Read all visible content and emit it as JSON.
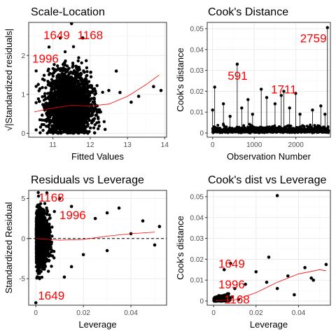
{
  "colors": {
    "points": "#000000",
    "smooth": "#ff0000",
    "annotation": "#ff0000",
    "grid": "#ebebeb"
  },
  "chart_data": [
    {
      "id": "scale-location",
      "type": "scatter",
      "title": "Scale-Location",
      "xlabel": "Fitted Values",
      "ylabel": "√|Standardized residuals|",
      "xlim": [
        10.35,
        14.05
      ],
      "ylim": [
        -0.1,
        2.85
      ],
      "xticks": [
        11,
        12,
        13,
        14
      ],
      "yticks": [
        0,
        1,
        2
      ],
      "cloud": {
        "x_center": 11.45,
        "x_spread": 0.28,
        "y_center": 0.72,
        "y_spread": 0.42,
        "n": 2800
      },
      "points": [
        [
          11.5,
          2.82
        ],
        [
          11.2,
          2.45
        ],
        [
          11.8,
          2.45
        ],
        [
          11.3,
          1.8
        ],
        [
          12.5,
          1.1
        ],
        [
          12.8,
          1.05
        ],
        [
          13.1,
          0.8
        ],
        [
          13.3,
          0.95
        ],
        [
          13.7,
          1.2
        ],
        [
          13.9,
          1.1
        ],
        [
          12.7,
          1.6
        ],
        [
          12.4,
          0.1
        ]
      ],
      "smooth": [
        [
          10.5,
          0.55
        ],
        [
          11.0,
          0.65
        ],
        [
          11.5,
          0.72
        ],
        [
          12.0,
          0.7
        ],
        [
          12.5,
          0.75
        ],
        [
          13.0,
          0.95
        ],
        [
          13.5,
          1.25
        ],
        [
          13.85,
          1.5
        ]
      ],
      "annotations": [
        {
          "label": "1649",
          "x": 11.1,
          "y": 2.5
        },
        {
          "label": "1168",
          "x": 12.0,
          "y": 2.5
        },
        {
          "label": "1996",
          "x": 10.8,
          "y": 1.9
        }
      ]
    },
    {
      "id": "cooks-distance",
      "type": "bar",
      "title": "Cook's Distance",
      "xlabel": "Observation Number",
      "ylabel": "Cook's distance",
      "xlim": [
        -130,
        2830
      ],
      "ylim": [
        -0.002,
        0.053
      ],
      "xticks": [
        0,
        1000,
        2000
      ],
      "yticks": [
        0.0,
        0.01,
        0.02,
        0.03,
        0.04,
        0.05
      ],
      "n_obs": 2790,
      "spikes": [
        [
          2759,
          0.0505
        ],
        [
          591,
          0.033
        ],
        [
          1711,
          0.02
        ],
        [
          1168,
          0.021
        ],
        [
          1649,
          0.018
        ],
        [
          1996,
          0.019
        ],
        [
          850,
          0.016
        ],
        [
          0,
          0.011
        ],
        [
          50,
          0.022
        ],
        [
          260,
          0.014
        ],
        [
          420,
          0.008
        ],
        [
          700,
          0.012
        ],
        [
          960,
          0.009
        ],
        [
          1300,
          0.017
        ],
        [
          1500,
          0.014
        ],
        [
          1850,
          0.012
        ],
        [
          2100,
          0.009
        ],
        [
          2400,
          0.011
        ],
        [
          2600,
          0.013
        ],
        [
          2700,
          0.009
        ]
      ],
      "annotations": [
        {
          "label": "2759",
          "x": 2420,
          "y": 0.045
        },
        {
          "label": "591",
          "x": 600,
          "y": 0.027
        },
        {
          "label": "1711",
          "x": 1710,
          "y": 0.0205
        }
      ]
    },
    {
      "id": "residuals-vs-leverage",
      "type": "scatter",
      "title": "Residuals vs Leverage",
      "xlabel": "Leverage",
      "ylabel": "Standardized Residual",
      "xlim": [
        -0.003,
        0.055
      ],
      "ylim": [
        -8.3,
        6.0
      ],
      "xticks": [
        0.0,
        0.02,
        0.04
      ],
      "yticks": [
        -5,
        0,
        5
      ],
      "cloud": {
        "x_center": 0.0015,
        "x_spread": 0.0025,
        "y_center": 0,
        "y_spread": 1.6,
        "n": 2000
      },
      "points": [
        [
          0.015,
          4.0
        ],
        [
          0.025,
          2.5
        ],
        [
          0.03,
          3.2
        ],
        [
          0.035,
          3.8
        ],
        [
          0.045,
          2.2
        ],
        [
          0.052,
          1.5
        ],
        [
          0.02,
          -2.0
        ],
        [
          0.03,
          -1.5
        ],
        [
          0.015,
          -3.5
        ],
        [
          0.0,
          -8.0
        ],
        [
          0.04,
          0.6
        ],
        [
          0.05,
          -0.8
        ],
        [
          0.01,
          5.0
        ],
        [
          0.012,
          -4.8
        ]
      ],
      "smooth": [
        [
          0.0,
          0.0
        ],
        [
          0.01,
          -0.2
        ],
        [
          0.02,
          -0.1
        ],
        [
          0.03,
          0.3
        ],
        [
          0.04,
          0.6
        ],
        [
          0.05,
          0.8
        ]
      ],
      "reference": 0,
      "annotations": [
        {
          "label": "1168",
          "x": 0.0065,
          "y": 5.0
        },
        {
          "label": "1996",
          "x": 0.0155,
          "y": 2.8
        },
        {
          "label": "1649",
          "x": 0.0065,
          "y": -7.2
        }
      ]
    },
    {
      "id": "cooks-vs-leverage",
      "type": "scatter",
      "title": "Cook's dist vs Leverage",
      "xlabel": "Leverage",
      "ylabel": "Cook's distance",
      "xlim": [
        -0.003,
        0.055
      ],
      "ylim": [
        -0.002,
        0.053
      ],
      "xticks": [
        0.0,
        0.02,
        0.04
      ],
      "yticks": [
        0.0,
        0.01,
        0.02,
        0.03,
        0.04,
        0.05
      ],
      "cloud": {
        "x_center": 0.003,
        "x_spread": 0.003,
        "y_center": 0.0008,
        "y_spread": 0.0015,
        "n": 900
      },
      "points": [
        [
          0.03,
          0.0505
        ],
        [
          0.053,
          0.0175
        ],
        [
          0.026,
          0.021
        ],
        [
          0.043,
          0.016
        ],
        [
          0.02,
          0.014
        ],
        [
          0.035,
          0.012
        ],
        [
          0.025,
          0.009
        ],
        [
          0.046,
          0.011
        ],
        [
          0.047,
          0.01
        ],
        [
          0.015,
          0.008
        ],
        [
          0.01,
          0.006
        ],
        [
          0.005,
          0.015
        ],
        [
          0.008,
          0.018
        ],
        [
          0.03,
          0.006
        ],
        [
          0.038,
          0.003
        ]
      ],
      "smooth": [
        [
          0.001,
          0.0002
        ],
        [
          0.01,
          0.0005
        ],
        [
          0.02,
          0.004
        ],
        [
          0.03,
          0.009
        ],
        [
          0.04,
          0.013
        ],
        [
          0.05,
          0.015
        ],
        [
          0.053,
          0.0145
        ]
      ],
      "annotations": [
        {
          "label": "1649",
          "x": 0.0085,
          "y": 0.0175
        },
        {
          "label": "1996",
          "x": 0.0085,
          "y": 0.0075
        },
        {
          "label": "1168",
          "x": 0.011,
          "y": 0.0003
        }
      ]
    }
  ]
}
